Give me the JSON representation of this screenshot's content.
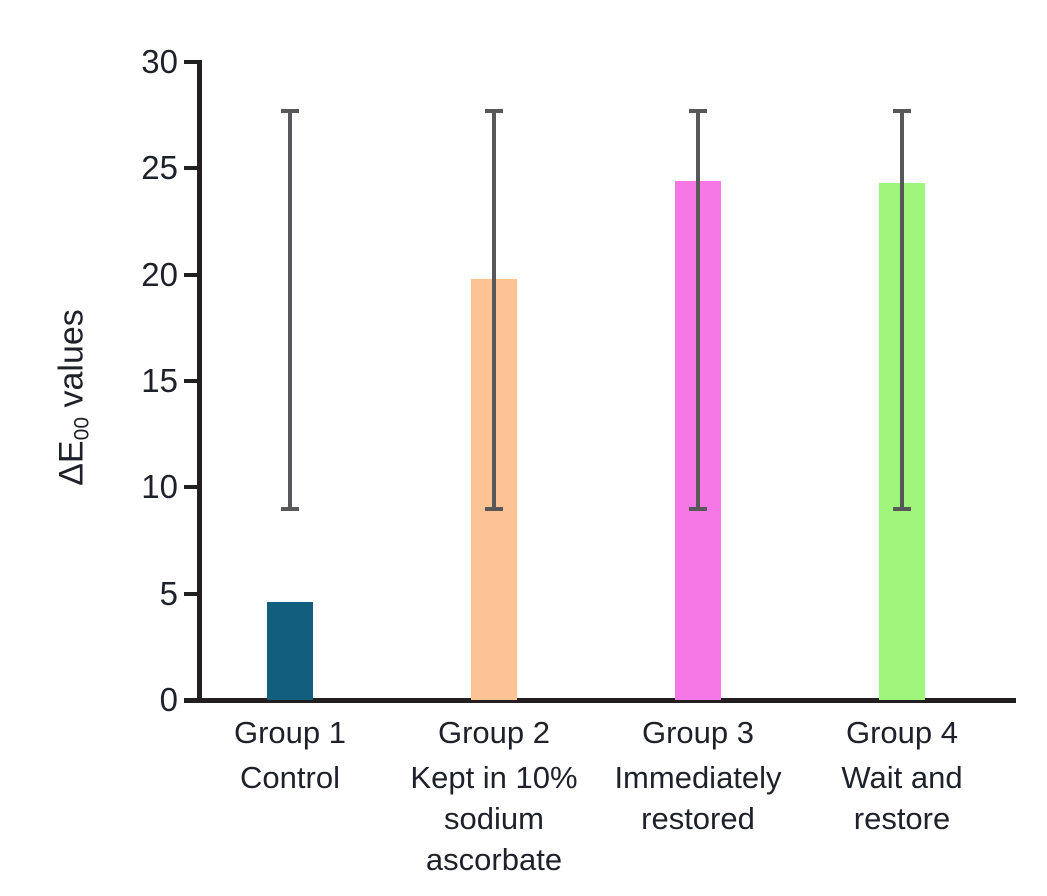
{
  "chart_data": {
    "type": "bar",
    "title": "",
    "ylabel": {
      "prefix": "ΔE",
      "subscript": "00",
      "suffix": " values"
    },
    "xlabel": "",
    "ylim": [
      0,
      30
    ],
    "yticks": [
      0,
      5,
      10,
      15,
      20,
      25,
      30
    ],
    "grid": false,
    "legend": "none",
    "categories": [
      {
        "group": "Group 1",
        "description_lines": [
          "Control"
        ]
      },
      {
        "group": "Group 2",
        "description_lines": [
          "Kept in 10%",
          "sodium",
          "ascorbate"
        ]
      },
      {
        "group": "Group 3",
        "description_lines": [
          "Immediately",
          "restored"
        ]
      },
      {
        "group": "Group 4",
        "description_lines": [
          "Wait and",
          "restore"
        ]
      }
    ],
    "values": [
      4.6,
      19.8,
      24.4,
      24.3
    ],
    "bar_colors": [
      "#125e7e",
      "#fdc394",
      "#f578e6",
      "#a0f57d"
    ],
    "error_bars": {
      "low": 9.0,
      "high": 27.7,
      "color": "#58585a"
    },
    "axis_color": "#231f20",
    "text_color": "#1e2129"
  }
}
